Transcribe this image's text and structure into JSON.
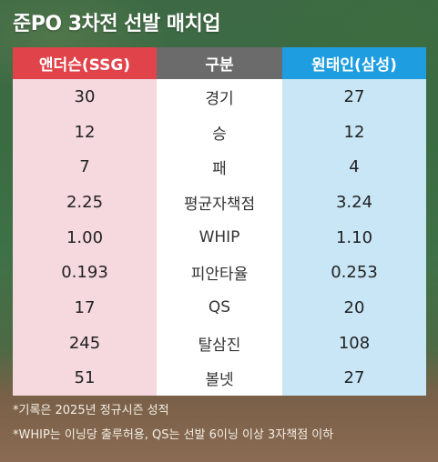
{
  "title": "준PO 3차전 선발 매치업",
  "headers": {
    "left": "앤더슨(SSG)",
    "middle": "구분",
    "right": "원태인(삼성)"
  },
  "rows": [
    {
      "left": "30",
      "category": "경기",
      "right": "27"
    },
    {
      "left": "12",
      "category": "승",
      "right": "12"
    },
    {
      "left": "7",
      "category": "패",
      "right": "4"
    },
    {
      "left": "2.25",
      "category": "평균자책점",
      "right": "3.24"
    },
    {
      "left": "1.00",
      "category": "WHIP",
      "right": "1.10"
    },
    {
      "left": "0.193",
      "category": "피안타율",
      "right": "0.253"
    },
    {
      "left": "17",
      "category": "QS",
      "right": "20"
    },
    {
      "left": "245",
      "category": "탈삼진",
      "right": "108"
    },
    {
      "left": "51",
      "category": "볼넷",
      "right": "27"
    }
  ],
  "notes": [
    "*기록은 2025년 정규시즌 성적",
    "*WHIP는 이닝당 출루허용, QS는 선발 6이닝 이상 3자책점 이하"
  ],
  "colors": {
    "left_header": "#e0434a",
    "middle_header": "#6b6b6b",
    "right_header": "#1e9ee0",
    "left_column": "#f6d9df",
    "right_column": "#c9e6f6"
  }
}
